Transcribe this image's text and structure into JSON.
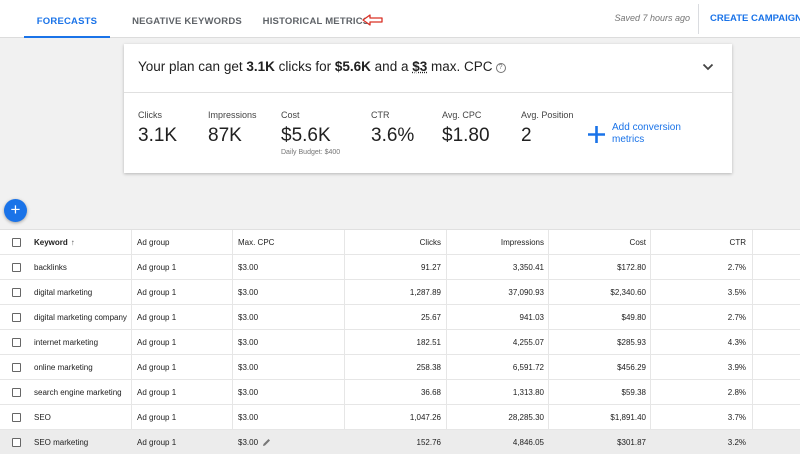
{
  "tabs": [
    {
      "label": "FORECASTS",
      "active": true
    },
    {
      "label": "NEGATIVE KEYWORDS",
      "active": false
    },
    {
      "label": "HISTORICAL METRICS",
      "active": false
    }
  ],
  "header": {
    "saved": "Saved 7 hours ago",
    "create_campaign": "CREATE CAMPAIGN"
  },
  "summary": {
    "plan_prefix": "Your plan can get ",
    "plan_clicks": "3.1K",
    "plan_mid1": " clicks for ",
    "plan_cost": "$5.6K",
    "plan_mid2": " and a ",
    "plan_cpc": "$3",
    "plan_suffix": " max. CPC",
    "help_icon": "?",
    "metrics": [
      {
        "label": "Clicks",
        "value": "3.1K"
      },
      {
        "label": "Impressions",
        "value": "87K"
      },
      {
        "label": "Cost",
        "value": "$5.6K",
        "sub": "Daily Budget: $400"
      },
      {
        "label": "CTR",
        "value": "3.6%"
      },
      {
        "label": "Avg. CPC",
        "value": "$1.80"
      },
      {
        "label": "Avg. Position",
        "value": "2"
      }
    ],
    "add_conversion": "Add conversion metrics"
  },
  "fab_label": "+",
  "table": {
    "columns": [
      "Keyword",
      "Ad group",
      "Max. CPC",
      "Clicks",
      "Impressions",
      "Cost",
      "CTR"
    ],
    "rows": [
      [
        "backlinks",
        "Ad group 1",
        "$3.00",
        "91.27",
        "3,350.41",
        "$172.80",
        "2.7%"
      ],
      [
        "digital marketing",
        "Ad group 1",
        "$3.00",
        "1,287.89",
        "37,090.93",
        "$2,340.60",
        "3.5%"
      ],
      [
        "digital marketing company",
        "Ad group 1",
        "$3.00",
        "25.67",
        "941.03",
        "$49.80",
        "2.7%"
      ],
      [
        "internet marketing",
        "Ad group 1",
        "$3.00",
        "182.51",
        "4,255.07",
        "$285.93",
        "4.3%"
      ],
      [
        "online marketing",
        "Ad group 1",
        "$3.00",
        "258.38",
        "6,591.72",
        "$456.29",
        "3.9%"
      ],
      [
        "search engine marketing",
        "Ad group 1",
        "$3.00",
        "36.68",
        "1,313.80",
        "$59.38",
        "2.8%"
      ],
      [
        "SEO",
        "Ad group 1",
        "$3.00",
        "1,047.26",
        "28,285.30",
        "$1,891.40",
        "3.7%"
      ],
      [
        "SEO marketing",
        "Ad group 1",
        "$3.00",
        "152.76",
        "4,846.05",
        "$301.87",
        "3.2%"
      ]
    ]
  },
  "colors": {
    "accent": "#1a73e8",
    "annotation_arrow": "#d93025"
  }
}
